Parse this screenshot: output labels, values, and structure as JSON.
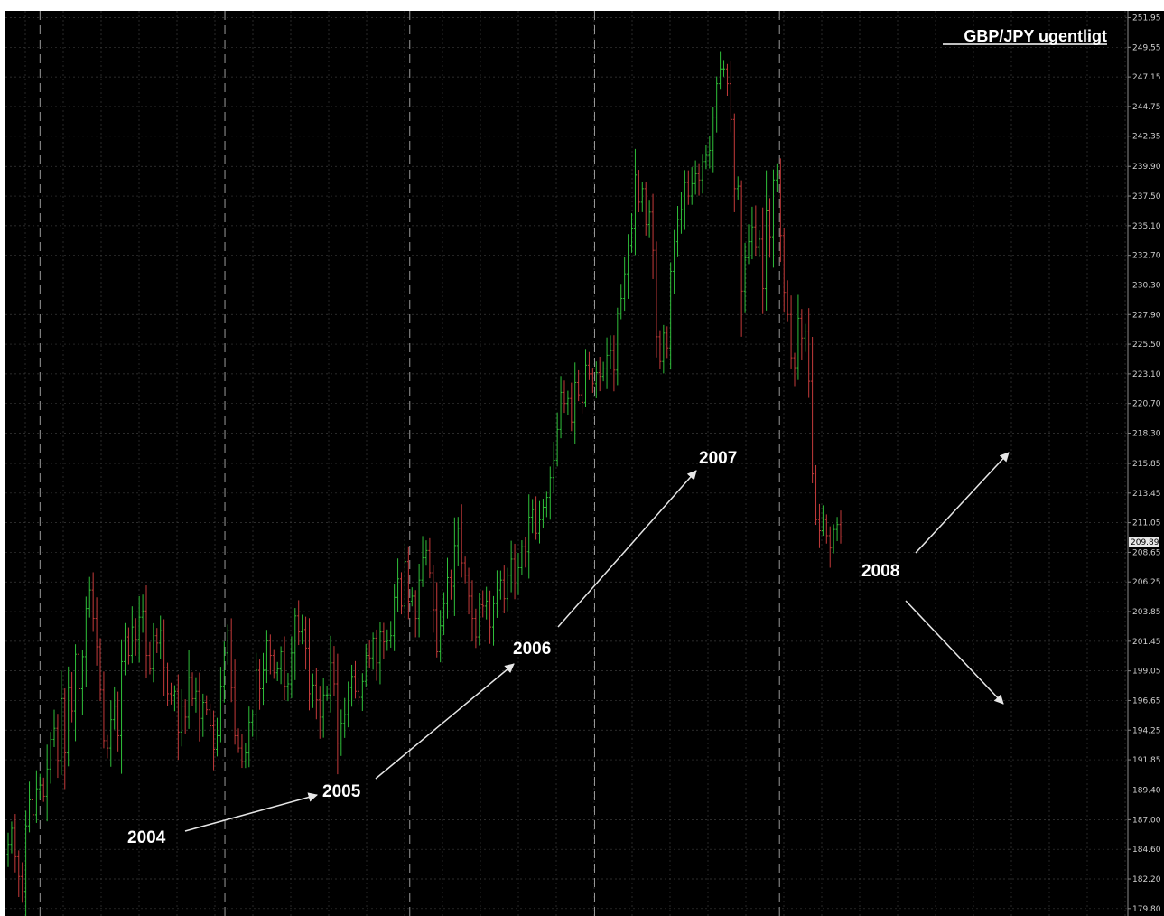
{
  "chart_data": {
    "type": "ohlc",
    "title": "GBP/JPY ugentligt",
    "background": "#000000",
    "grid": true,
    "colors": {
      "up": "#2fbf3a",
      "down": "#c43a3a",
      "grid": "#3a3a3a",
      "year_divider": "#9a9a9a",
      "axis_text": "#cfcfcf",
      "arrow": "#e6e6e6"
    },
    "y_axis": {
      "position": "right",
      "ylim": [
        179.2,
        252.5
      ],
      "ticks": [
        "251.95",
        "249.55",
        "247.15",
        "244.75",
        "242.35",
        "239.90",
        "237.50",
        "235.10",
        "232.70",
        "230.30",
        "227.90",
        "225.50",
        "223.10",
        "220.70",
        "218.30",
        "215.85",
        "213.45",
        "211.05",
        "208.65",
        "206.25",
        "203.85",
        "201.45",
        "199.05",
        "196.65",
        "194.25",
        "191.85",
        "189.40",
        "187.00",
        "184.60",
        "182.20",
        "179.80"
      ]
    },
    "last_price": "209.89",
    "x_period": {
      "start_year": 2004,
      "end_year": 2008,
      "interval": "weekly"
    },
    "year_dividers": [
      "2004",
      "2005",
      "2006",
      "2007",
      "2008"
    ],
    "closes": [
      185.0,
      186.3,
      184.0,
      182.4,
      181.2,
      186.5,
      188.6,
      187.4,
      189.5,
      189.8,
      188.9,
      191.1,
      193.5,
      194.4,
      191.8,
      196.8,
      192.4,
      197.7,
      195.8,
      200.4,
      197.6,
      200.2,
      204.1,
      205.6,
      203.3,
      201.0,
      197.5,
      193.4,
      192.8,
      195.1,
      196.2,
      193.8,
      199.8,
      201.8,
      200.3,
      202.6,
      201.6,
      203.4,
      203.9,
      200.3,
      199.2,
      201.9,
      201.3,
      202.3,
      199.3,
      197.2,
      197.1,
      197.4,
      194.1,
      196.2,
      195.3,
      198.5,
      196.8,
      197.4,
      195.2,
      196.5,
      195.9,
      194.6,
      192.7,
      193.8,
      197.8,
      200.5,
      202.3,
      197.7,
      193.8,
      192.8,
      191.7,
      192.4,
      194.9,
      195.5,
      199.1,
      197.6,
      199.1,
      201.5,
      200.3,
      198.9,
      199.2,
      200.6,
      197.8,
      198.0,
      200.5,
      203.5,
      202.2,
      202.4,
      200.9,
      197.2,
      197.9,
      196.7,
      195.3,
      197.1,
      197.1,
      199.7,
      198.0,
      193.2,
      194.8,
      195.5,
      197.7,
      198.6,
      197.4,
      196.9,
      198.2,
      200.3,
      200.1,
      201.7,
      199.7,
      202.2,
      201.4,
      201.5,
      201.9,
      205.0,
      206.5,
      204.3,
      207.9,
      204.7,
      205.1,
      203.3,
      206.4,
      208.2,
      208.8,
      207.0,
      204.0,
      200.6,
      202.7,
      204.5,
      206.6,
      205.9,
      209.2,
      210.6,
      207.8,
      206.8,
      205.1,
      203.3,
      201.8,
      204.4,
      204.3,
      204.7,
      202.6,
      204.5,
      205.6,
      206.4,
      204.9,
      206.8,
      208.1,
      206.1,
      207.4,
      209.1,
      208.7,
      211.5,
      212.1,
      210.2,
      211.3,
      212.3,
      213.1,
      214.7,
      216.1,
      218.6,
      221.6,
      220.7,
      221.1,
      219.2,
      222.4,
      221.4,
      220.8,
      223.8,
      223.1,
      222.3,
      223.2,
      222.9,
      223.5,
      224.6,
      225.0,
      223.4,
      228.0,
      229.2,
      231.2,
      233.5,
      234.9,
      239.2,
      237.0,
      238.1,
      235.2,
      236.2,
      233.1,
      226.1,
      224.1,
      226.4,
      225.2,
      231.4,
      233.8,
      235.6,
      236.4,
      238.6,
      237.5,
      238.5,
      239.3,
      238.8,
      240.3,
      240.8,
      241.2,
      243.9,
      246.6,
      247.8,
      247.8,
      246.6,
      243.7,
      238.1,
      238.3,
      229.8,
      232.5,
      233.8,
      235.0,
      233.4,
      234.0,
      230.0,
      236.3,
      234.2,
      238.8,
      239.2,
      234.3,
      229.7,
      227.9,
      224.4,
      223.6,
      227.6,
      226.0,
      226.5,
      222.5,
      215.0,
      211.3,
      210.4,
      211.3,
      210.0,
      209.0,
      210.5,
      210.9,
      209.9
    ]
  },
  "annotations": [
    {
      "label": "2004"
    },
    {
      "label": "2005"
    },
    {
      "label": "2006"
    },
    {
      "label": "2007"
    },
    {
      "label": "2008"
    }
  ]
}
